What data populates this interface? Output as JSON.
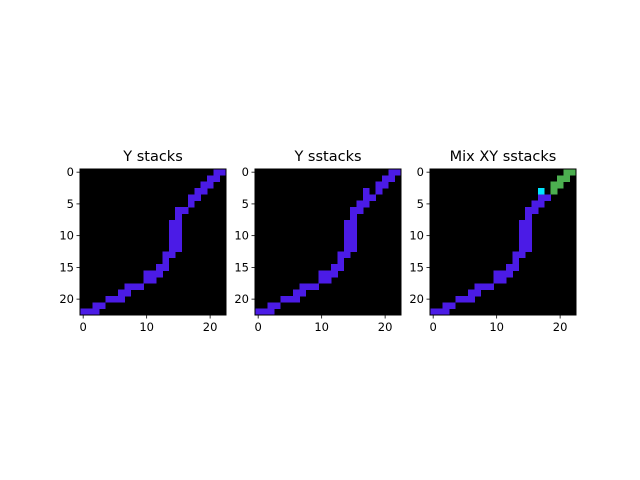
{
  "chart_data": [
    {
      "type": "heatmap",
      "title": "Y stacks",
      "xlabel": "",
      "ylabel": "",
      "grid": false,
      "background_color": "#000000",
      "xlim": [
        -0.5,
        22.5
      ],
      "ylim": [
        22.5,
        -0.5
      ],
      "x_ticks": [
        0,
        10,
        20
      ],
      "y_ticks": [
        0,
        5,
        10,
        15,
        20
      ],
      "y_inverted": true,
      "colors": {
        "purple": "#4b1be6"
      },
      "pixels": [
        {
          "color": "purple",
          "cells": [
            [
              21,
              0
            ],
            [
              22,
              0
            ],
            [
              20,
              1
            ],
            [
              21,
              1
            ],
            [
              19,
              2
            ],
            [
              20,
              2
            ],
            [
              18,
              3
            ],
            [
              19,
              3
            ],
            [
              17,
              4
            ],
            [
              18,
              4
            ],
            [
              17,
              5
            ],
            [
              15,
              6
            ],
            [
              16,
              6
            ],
            [
              15,
              7
            ],
            [
              14,
              8
            ],
            [
              15,
              8
            ],
            [
              14,
              9
            ],
            [
              15,
              9
            ],
            [
              14,
              10
            ],
            [
              15,
              10
            ],
            [
              14,
              11
            ],
            [
              15,
              11
            ],
            [
              14,
              12
            ],
            [
              15,
              12
            ],
            [
              13,
              13
            ],
            [
              14,
              13
            ],
            [
              13,
              14
            ],
            [
              12,
              15
            ],
            [
              13,
              15
            ],
            [
              10,
              16
            ],
            [
              11,
              16
            ],
            [
              12,
              16
            ],
            [
              10,
              17
            ],
            [
              11,
              17
            ],
            [
              7,
              18
            ],
            [
              8,
              18
            ],
            [
              9,
              18
            ],
            [
              6,
              19
            ],
            [
              7,
              19
            ],
            [
              4,
              20
            ],
            [
              5,
              20
            ],
            [
              6,
              20
            ],
            [
              2,
              21
            ],
            [
              3,
              21
            ],
            [
              0,
              22
            ],
            [
              1,
              22
            ],
            [
              2,
              22
            ]
          ]
        }
      ]
    },
    {
      "type": "heatmap",
      "title": "Y sstacks",
      "xlabel": "",
      "ylabel": "",
      "grid": false,
      "background_color": "#000000",
      "xlim": [
        -0.5,
        22.5
      ],
      "ylim": [
        22.5,
        -0.5
      ],
      "x_ticks": [
        0,
        10,
        20
      ],
      "y_ticks": [
        0,
        5,
        10,
        15,
        20
      ],
      "y_inverted": true,
      "colors": {
        "purple": "#4b1be6"
      },
      "pixels": [
        {
          "color": "purple",
          "cells": [
            [
              21,
              0
            ],
            [
              22,
              0
            ],
            [
              20,
              1
            ],
            [
              21,
              1
            ],
            [
              19,
              2
            ],
            [
              20,
              2
            ],
            [
              17,
              3
            ],
            [
              19,
              3
            ],
            [
              17,
              4
            ],
            [
              18,
              4
            ],
            [
              16,
              5
            ],
            [
              17,
              5
            ],
            [
              15,
              6
            ],
            [
              16,
              6
            ],
            [
              15,
              7
            ],
            [
              14,
              8
            ],
            [
              15,
              8
            ],
            [
              14,
              9
            ],
            [
              15,
              9
            ],
            [
              14,
              10
            ],
            [
              15,
              10
            ],
            [
              14,
              11
            ],
            [
              15,
              11
            ],
            [
              14,
              12
            ],
            [
              15,
              12
            ],
            [
              13,
              13
            ],
            [
              14,
              13
            ],
            [
              13,
              14
            ],
            [
              12,
              15
            ],
            [
              13,
              15
            ],
            [
              10,
              16
            ],
            [
              11,
              16
            ],
            [
              12,
              16
            ],
            [
              10,
              17
            ],
            [
              11,
              17
            ],
            [
              7,
              18
            ],
            [
              8,
              18
            ],
            [
              9,
              18
            ],
            [
              6,
              19
            ],
            [
              7,
              19
            ],
            [
              4,
              20
            ],
            [
              5,
              20
            ],
            [
              6,
              20
            ],
            [
              2,
              21
            ],
            [
              3,
              21
            ],
            [
              0,
              22
            ],
            [
              1,
              22
            ],
            [
              2,
              22
            ]
          ]
        }
      ]
    },
    {
      "type": "heatmap",
      "title": "Mix XY sstacks",
      "xlabel": "",
      "ylabel": "",
      "grid": false,
      "background_color": "#000000",
      "xlim": [
        -0.5,
        22.5
      ],
      "ylim": [
        22.5,
        -0.5
      ],
      "x_ticks": [
        0,
        10,
        20
      ],
      "y_ticks": [
        0,
        5,
        10,
        15,
        20
      ],
      "y_inverted": true,
      "colors": {
        "purple": "#4b1be6",
        "green": "#4caf50",
        "cyan": "#00e5ff"
      },
      "pixels": [
        {
          "color": "green",
          "cells": [
            [
              21,
              0
            ],
            [
              22,
              0
            ],
            [
              20,
              1
            ],
            [
              21,
              1
            ],
            [
              19,
              2
            ],
            [
              20,
              2
            ],
            [
              19,
              3
            ]
          ]
        },
        {
          "color": "cyan",
          "cells": [
            [
              17,
              3
            ]
          ]
        },
        {
          "color": "purple",
          "cells": [
            [
              17,
              4
            ],
            [
              18,
              4
            ],
            [
              16,
              5
            ],
            [
              17,
              5
            ],
            [
              15,
              6
            ],
            [
              16,
              6
            ],
            [
              15,
              7
            ],
            [
              14,
              8
            ],
            [
              15,
              8
            ],
            [
              14,
              9
            ],
            [
              15,
              9
            ],
            [
              14,
              10
            ],
            [
              15,
              10
            ],
            [
              14,
              11
            ],
            [
              15,
              11
            ],
            [
              14,
              12
            ],
            [
              15,
              12
            ],
            [
              13,
              13
            ],
            [
              14,
              13
            ],
            [
              13,
              14
            ],
            [
              12,
              15
            ],
            [
              13,
              15
            ],
            [
              10,
              16
            ],
            [
              11,
              16
            ],
            [
              12,
              16
            ],
            [
              10,
              17
            ],
            [
              11,
              17
            ],
            [
              7,
              18
            ],
            [
              8,
              18
            ],
            [
              9,
              18
            ],
            [
              6,
              19
            ],
            [
              7,
              19
            ],
            [
              4,
              20
            ],
            [
              5,
              20
            ],
            [
              6,
              20
            ],
            [
              2,
              21
            ],
            [
              3,
              21
            ],
            [
              0,
              22
            ],
            [
              1,
              22
            ],
            [
              2,
              22
            ]
          ]
        }
      ]
    }
  ]
}
